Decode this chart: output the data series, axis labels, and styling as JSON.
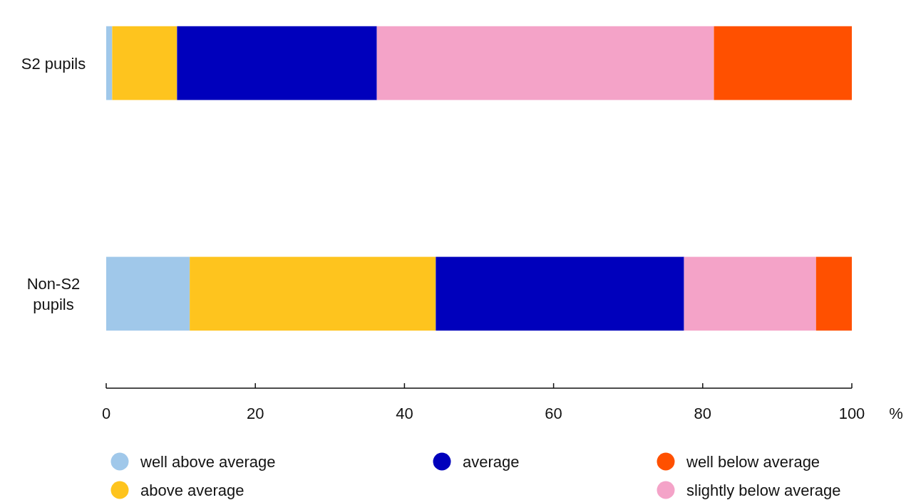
{
  "chart_data": {
    "type": "bar",
    "orientation": "horizontal",
    "stacked": true,
    "categories": [
      "S2 pupils",
      "Non-S2 pupils"
    ],
    "series": [
      {
        "name": "well above average",
        "color": "#a0c8ea",
        "values": [
          0.8,
          11.2
        ]
      },
      {
        "name": "above average",
        "color": "#fec41e",
        "values": [
          8.7,
          33.0
        ]
      },
      {
        "name": "average",
        "color": "#0000bc",
        "values": [
          26.8,
          33.3
        ]
      },
      {
        "name": "slightly below average",
        "color": "#f4a3c8",
        "values": [
          45.2,
          17.7
        ]
      },
      {
        "name": "well below average",
        "color": "#ff5000",
        "values": [
          18.5,
          4.8
        ]
      }
    ],
    "xlabel": "%",
    "xlim": [
      0,
      100
    ],
    "xticks": [
      0,
      20,
      40,
      60,
      80,
      100
    ],
    "grid": false,
    "legend": "bottom"
  }
}
